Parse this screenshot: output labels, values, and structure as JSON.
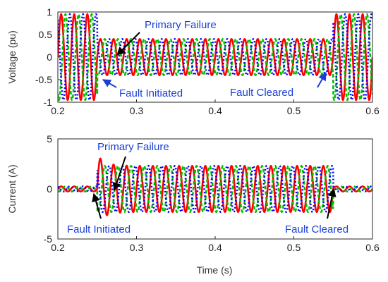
{
  "chart_data": [
    {
      "type": "line",
      "title": "",
      "xlabel": "",
      "ylabel": "Voltage (pu)",
      "xlim": [
        0.2,
        0.6
      ],
      "ylim": [
        -1,
        1
      ],
      "xticks": [
        "0.2",
        "0.3",
        "0.4",
        "0.5",
        "0.6"
      ],
      "yticks": [
        "1",
        "0.5",
        "0",
        "-0.5",
        "-1"
      ],
      "grid": false,
      "legend": "none",
      "frequency_hz": 60,
      "series": [
        {
          "color": "#ff0000",
          "style": "solid",
          "phase_deg": 0
        },
        {
          "color": "#00c000",
          "style": "dashed",
          "phase_deg": -120
        },
        {
          "color": "#0000ff",
          "style": "dotted",
          "phase_deg": 120
        }
      ],
      "segments": [
        {
          "x": [
            0.2,
            0.25
          ],
          "amplitude": 0.95
        },
        {
          "x": [
            0.25,
            0.55
          ],
          "amplitude": 0.4
        },
        {
          "x": [
            0.55,
            0.6
          ],
          "amplitude": 0.95
        }
      ],
      "annotations": [
        {
          "text": "Primary Failure",
          "x": 0.27,
          "y": 0.05
        },
        {
          "text": "Fault Initiated",
          "x": 0.258,
          "y": -0.72
        },
        {
          "text": "Fault Cleared",
          "x": 0.545,
          "y": -0.42
        }
      ]
    },
    {
      "type": "line",
      "title": "",
      "xlabel": "Time (s)",
      "ylabel": "Current (A)",
      "xlim": [
        0.2,
        0.6
      ],
      "ylim": [
        -5,
        5
      ],
      "xticks": [
        "0.2",
        "0.3",
        "0.4",
        "0.5",
        "0.6"
      ],
      "yticks": [
        "5",
        "0",
        "-5"
      ],
      "grid": false,
      "legend": "none",
      "frequency_hz": 60,
      "series": [
        {
          "color": "#ff0000",
          "style": "solid",
          "phase_deg": 0
        },
        {
          "color": "#00c000",
          "style": "dashed",
          "phase_deg": -120
        },
        {
          "color": "#0000ff",
          "style": "dotted",
          "phase_deg": 120
        }
      ],
      "segments": [
        {
          "x": [
            0.2,
            0.25
          ],
          "amplitude": 0.25
        },
        {
          "x": [
            0.25,
            0.55
          ],
          "amplitude": 2.3,
          "initial_peak": 3.4
        },
        {
          "x": [
            0.55,
            0.6
          ],
          "amplitude": 0.25
        }
      ],
      "annotations": [
        {
          "text": "Primary Failure",
          "x": 0.272,
          "y": -0.2
        },
        {
          "text": "Fault Initiated",
          "x": 0.25,
          "y": -0.5
        },
        {
          "text": "Fault Cleared",
          "x": 0.55,
          "y": -0.2
        }
      ]
    }
  ],
  "labels": {
    "top_annotations": [
      "Primary Failure",
      "Fault Initiated",
      "Fault Cleared"
    ],
    "bottom_annotations": [
      "Primary Failure",
      "Fault Initiated",
      "Fault Cleared"
    ]
  }
}
